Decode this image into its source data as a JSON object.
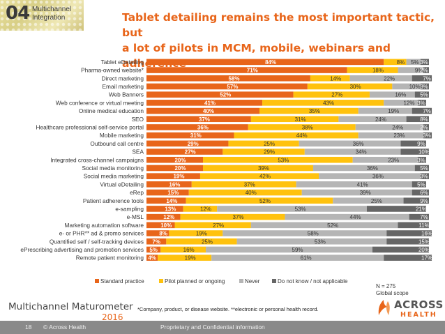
{
  "header": {
    "section_number": "04",
    "section_label_line1": "Multichannel",
    "section_label_line2": "Integration",
    "title_line1": "Tablet detailing remains the most important tactic, but",
    "title_line2": "a lot of pilots in MCM, mobile, webinars and adherence"
  },
  "chart_data": {
    "type": "bar",
    "orientation": "horizontal",
    "stacked": true,
    "unit": "%",
    "xlim": [
      0,
      100
    ],
    "categories": [
      "Tablet eDetailing",
      "Pharma-owned website*",
      "Direct marketing",
      "Email marketing",
      "Web Banners",
      "Web conference or virtual meeting",
      "Online medical education",
      "SEO",
      "Healthcare professional self-service portal",
      "Mobile marketing",
      "Outbound call centre",
      "SEA",
      "Integrated cross-channel campaigns",
      "Social media monitoring",
      "Social media marketing",
      "Virtual eDetailing",
      "eRep",
      "Patient adherence tools",
      "e-sampling",
      "e-MSL",
      "Marketing automation software",
      "e- or PHR** ad & promo services",
      "Quantified self / self-tracking devices",
      "ePrescribing advertising and promotion services",
      "Remote patient monitoring"
    ],
    "series": [
      {
        "name": "Standard practice",
        "color": "#e8651a",
        "values": [
          84,
          71,
          58,
          57,
          52,
          41,
          40,
          37,
          36,
          31,
          29,
          27,
          20,
          20,
          19,
          16,
          15,
          14,
          13,
          12,
          10,
          8,
          7,
          5,
          4
        ]
      },
      {
        "name": "Pilot planned or ongoing",
        "color": "#ffc20e",
        "values": [
          8,
          18,
          14,
          30,
          27,
          43,
          35,
          31,
          38,
          44,
          25,
          29,
          53,
          39,
          42,
          37,
          40,
          52,
          12,
          37,
          27,
          19,
          25,
          16,
          19
        ]
      },
      {
        "name": "Never",
        "color": "#b5b5b5",
        "values": [
          5,
          9,
          22,
          10,
          16,
          12,
          19,
          24,
          24,
          23,
          36,
          34,
          23,
          36,
          36,
          41,
          39,
          25,
          53,
          44,
          52,
          58,
          53,
          59,
          61
        ]
      },
      {
        "name": "Do not know / not applicable",
        "color": "#666666",
        "values": [
          3,
          2,
          7,
          3,
          5,
          3,
          7,
          8,
          2,
          3,
          9,
          10,
          3,
          5,
          3,
          5,
          6,
          9,
          21,
          7,
          11,
          16,
          15,
          20,
          17
        ]
      }
    ],
    "legend_position": "bottom"
  },
  "notes": {
    "sample_line1": "N = 275",
    "sample_line2": "Global scope",
    "asterisk_note": "*Company, product, or disease website. **electronic or personal health record."
  },
  "brand": {
    "name": "Multichannel Maturometer",
    "year": "2016",
    "logo_line1": "ACROSS",
    "logo_line2": "HEALTH"
  },
  "footer": {
    "page": "18",
    "copyright": "© Across Health",
    "confidential": "Proprietary and Confidential information"
  }
}
